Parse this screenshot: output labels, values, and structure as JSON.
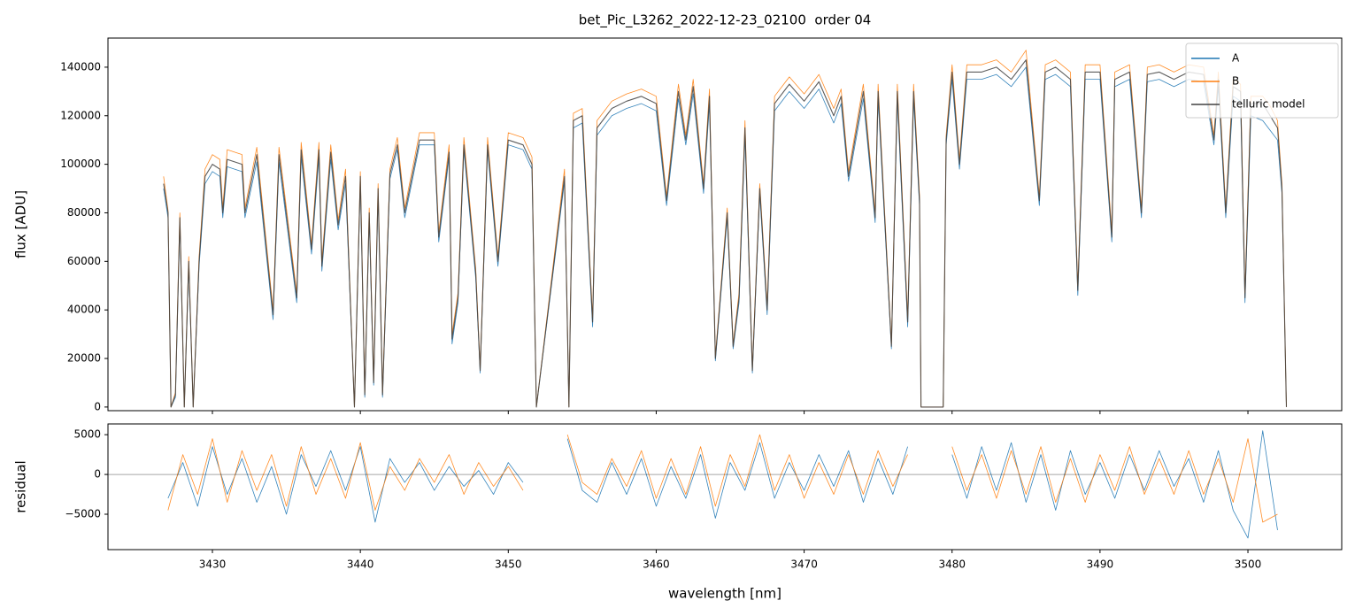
{
  "chart_data": [
    {
      "type": "line",
      "title": "bet_Pic_L3262_2022-12-23_02100  order 04",
      "ylabel": "flux [ADU]",
      "xlim": [
        3422.94,
        3506.34
      ],
      "ylim": [
        -1500,
        152000
      ],
      "yticks": [
        0,
        20000,
        40000,
        60000,
        80000,
        100000,
        120000,
        140000
      ],
      "legend": "upper right",
      "x": [
        3426.7,
        3427.0,
        3427.2,
        3427.5,
        3427.8,
        3428.1,
        3428.4,
        3428.7,
        3429.1,
        3429.5,
        3430.0,
        3430.5,
        3430.7,
        3431.0,
        3432.0,
        3432.2,
        3433.0,
        3434.1,
        3434.5,
        3435.7,
        3436.0,
        3436.7,
        3437.2,
        3437.4,
        3438.0,
        3438.5,
        3439.0,
        3439.6,
        3440.0,
        3440.3,
        3440.6,
        3440.9,
        3441.2,
        3441.5,
        3441.8,
        3442.0,
        3442.5,
        3443.0,
        3444.0,
        3445.0,
        3445.3,
        3446.0,
        3446.2,
        3446.6,
        3447.0,
        3447.8,
        3448.1,
        3448.6,
        3449.3,
        3450.0,
        3451.0,
        3451.6,
        3451.9,
        3453.8,
        3454.1,
        3454.4,
        3455.0,
        3455.7,
        3456.0,
        3457.0,
        3458.0,
        3459.0,
        3460.0,
        3460.7,
        3461.5,
        3462.0,
        3462.5,
        3463.2,
        3463.6,
        3464.0,
        3464.8,
        3465.2,
        3465.6,
        3466.0,
        3466.5,
        3467.0,
        3467.5,
        3468.0,
        3469.0,
        3470.0,
        3471.0,
        3472.0,
        3472.5,
        3473.0,
        3474.0,
        3474.8,
        3475.0,
        3475.9,
        3476.3,
        3477.0,
        3477.4,
        3477.8,
        3477.9,
        3479.4,
        3479.6,
        3480.0,
        3480.5,
        3481.0,
        3482.0,
        3483.0,
        3484.0,
        3485.0,
        3485.9,
        3486.3,
        3487.0,
        3488.0,
        3488.5,
        3489.0,
        3490.0,
        3490.8,
        3491.0,
        3492.0,
        3492.8,
        3493.2,
        3494.0,
        3495.0,
        3496.0,
        3497.0,
        3497.7,
        3498.0,
        3498.5,
        3499.0,
        3499.5,
        3499.8,
        3500.2,
        3501.0,
        3501.5,
        3502.0,
        3502.3,
        3502.6
      ],
      "series": [
        {
          "name": "A",
          "color": "#1f77b4",
          "values": [
            90000,
            78000,
            0,
            4000,
            76000,
            0,
            58000,
            0,
            58000,
            92000,
            97000,
            95000,
            78000,
            99000,
            97000,
            78000,
            101000,
            36000,
            101000,
            43000,
            103000,
            63000,
            103000,
            56000,
            102000,
            73000,
            92000,
            0,
            93000,
            4000,
            78000,
            9000,
            88000,
            4000,
            58000,
            94000,
            106000,
            78000,
            108000,
            108000,
            68000,
            103000,
            26000,
            43000,
            106000,
            53000,
            14000,
            106000,
            58000,
            108000,
            106000,
            98000,
            0,
            93000,
            0,
            115000,
            117000,
            33000,
            112000,
            120000,
            123000,
            125000,
            122000,
            83000,
            127000,
            108000,
            129000,
            88000,
            125000,
            19000,
            78000,
            24000,
            43000,
            112000,
            14000,
            88000,
            38000,
            122000,
            130000,
            123000,
            131000,
            117000,
            125000,
            93000,
            127000,
            76000,
            127000,
            24000,
            127000,
            33000,
            127000,
            83000,
            0,
            0,
            108000,
            135000,
            98000,
            135000,
            135000,
            137000,
            132000,
            140000,
            83000,
            135000,
            137000,
            132000,
            46000,
            135000,
            135000,
            68000,
            132000,
            135000,
            78000,
            134000,
            135000,
            132000,
            135000,
            134000,
            108000,
            132000,
            78000,
            128000,
            126000,
            43000,
            120000,
            118000,
            114000,
            110000,
            88000,
            0
          ]
        },
        {
          "name": "B",
          "color": "#ff7f0e",
          "values": [
            95000,
            81000,
            0,
            6000,
            80000,
            0,
            62000,
            0,
            62000,
            98000,
            104000,
            102000,
            82000,
            106000,
            104000,
            82000,
            107000,
            40000,
            107000,
            47000,
            109000,
            67000,
            109000,
            60000,
            108000,
            77000,
            98000,
            0,
            97000,
            6000,
            82000,
            11000,
            92000,
            6000,
            62000,
            98000,
            111000,
            82000,
            113000,
            113000,
            72000,
            108000,
            30000,
            47000,
            111000,
            57000,
            16000,
            111000,
            62000,
            113000,
            111000,
            103000,
            0,
            98000,
            0,
            121000,
            123000,
            37000,
            118000,
            126000,
            129000,
            131000,
            128000,
            87000,
            133000,
            112000,
            135000,
            92000,
            131000,
            21000,
            82000,
            26000,
            47000,
            118000,
            16000,
            92000,
            42000,
            128000,
            136000,
            129000,
            137000,
            123000,
            131000,
            97000,
            133000,
            80000,
            133000,
            26000,
            133000,
            37000,
            133000,
            87000,
            0,
            0,
            112000,
            141000,
            102000,
            141000,
            141000,
            143000,
            138000,
            147000,
            87000,
            141000,
            143000,
            138000,
            50000,
            141000,
            141000,
            72000,
            138000,
            141000,
            82000,
            140000,
            141000,
            138000,
            141000,
            140000,
            112000,
            138000,
            82000,
            135000,
            133000,
            47000,
            128000,
            128000,
            124000,
            118000,
            92000,
            0
          ]
        },
        {
          "name": "telluric model",
          "color": "#404040",
          "values": [
            92000,
            80000,
            0,
            5000,
            78000,
            0,
            60000,
            0,
            60000,
            95000,
            100000,
            98000,
            80000,
            102000,
            100000,
            80000,
            104000,
            38000,
            104000,
            45000,
            106000,
            65000,
            106000,
            58000,
            105000,
            75000,
            95000,
            0,
            95000,
            5000,
            80000,
            10000,
            90000,
            5000,
            60000,
            96000,
            108000,
            80000,
            110000,
            110000,
            70000,
            105000,
            28000,
            45000,
            108000,
            55000,
            15000,
            108000,
            60000,
            110000,
            108000,
            100000,
            0,
            95000,
            0,
            118000,
            120000,
            35000,
            115000,
            123000,
            126000,
            128000,
            125000,
            85000,
            130000,
            110000,
            132000,
            90000,
            128000,
            20000,
            80000,
            25000,
            45000,
            115000,
            15000,
            90000,
            40000,
            125000,
            133000,
            126000,
            134000,
            120000,
            128000,
            95000,
            130000,
            78000,
            130000,
            25000,
            130000,
            35000,
            130000,
            85000,
            0,
            0,
            110000,
            138000,
            100000,
            138000,
            138000,
            140000,
            135000,
            143000,
            85000,
            138000,
            140000,
            135000,
            48000,
            138000,
            138000,
            70000,
            135000,
            138000,
            80000,
            137000,
            138000,
            135000,
            138000,
            137000,
            110000,
            135000,
            80000,
            132000,
            130000,
            45000,
            125000,
            125000,
            120000,
            115000,
            90000,
            0
          ]
        }
      ]
    },
    {
      "type": "line",
      "ylabel": "residual",
      "xlabel": "wavelength [nm]",
      "xlim": [
        3422.94,
        3506.34
      ],
      "ylim": [
        -9450,
        6350
      ],
      "xticks": [
        3430,
        3440,
        3450,
        3460,
        3470,
        3480,
        3490,
        3500
      ],
      "yticks": [
        {
          "value": -5000,
          "label": "−5000"
        },
        0,
        5000
      ],
      "hline": 0,
      "x": [
        3427,
        3428,
        3429,
        3430,
        3431,
        3432,
        3433,
        3434,
        3435,
        3436,
        3437,
        3438,
        3439,
        3440,
        3441,
        3442,
        3443,
        3444,
        3445,
        3446,
        3447,
        3448,
        3449,
        3450,
        3451,
        3452,
        3453,
        3454,
        3455,
        3456,
        3457,
        3458,
        3459,
        3460,
        3461,
        3462,
        3463,
        3464,
        3465,
        3466,
        3467,
        3468,
        3469,
        3470,
        3471,
        3472,
        3473,
        3474,
        3475,
        3476,
        3477,
        3478,
        3479,
        3480,
        3481,
        3482,
        3483,
        3484,
        3485,
        3486,
        3487,
        3488,
        3489,
        3490,
        3491,
        3492,
        3493,
        3494,
        3495,
        3496,
        3497,
        3498,
        3499,
        3500,
        3501,
        3502
      ],
      "series": [
        {
          "color": "#1f77b4",
          "values": [
            -3000,
            1500,
            -4000,
            3500,
            -2500,
            2000,
            -3500,
            1000,
            -5000,
            2500,
            -1500,
            3000,
            -2000,
            3500,
            -6000,
            2000,
            -1000,
            1500,
            -2000,
            1000,
            -1500,
            500,
            -2500,
            1500,
            -1000,
            null,
            null,
            4500,
            -2000,
            -3500,
            1500,
            -2500,
            2000,
            -4000,
            1000,
            -3000,
            2500,
            -5500,
            1500,
            -2000,
            4000,
            -3000,
            1500,
            -2000,
            2500,
            -1500,
            3000,
            -3500,
            2000,
            -2500,
            3500,
            null,
            null,
            2500,
            -3000,
            3500,
            -2000,
            4000,
            -3500,
            2500,
            -4500,
            3000,
            -2500,
            1500,
            -3000,
            2500,
            -2000,
            3000,
            -1500,
            2000,
            -3500,
            3000,
            -4500,
            -8000,
            5500,
            -7000
          ]
        },
        {
          "color": "#ff7f0e",
          "values": [
            -4500,
            2500,
            -2500,
            4500,
            -3500,
            3000,
            -2000,
            2500,
            -4000,
            3500,
            -2500,
            2000,
            -3000,
            4000,
            -4500,
            1000,
            -2000,
            2000,
            -1000,
            2500,
            -2500,
            1500,
            -1500,
            1000,
            -2000,
            null,
            null,
            5000,
            -1000,
            -2500,
            2000,
            -1500,
            3000,
            -3000,
            2000,
            -2500,
            3500,
            -4000,
            2500,
            -1500,
            5000,
            -2000,
            2500,
            -3000,
            1500,
            -2500,
            2500,
            -2500,
            3000,
            -1500,
            2500,
            null,
            null,
            3500,
            -2000,
            2500,
            -3000,
            3000,
            -2500,
            3500,
            -3500,
            2000,
            -3500,
            2500,
            -2000,
            3500,
            -2500,
            2000,
            -2500,
            3000,
            -2500,
            2000,
            -3500,
            4500,
            -6000,
            -5000
          ]
        }
      ]
    }
  ]
}
